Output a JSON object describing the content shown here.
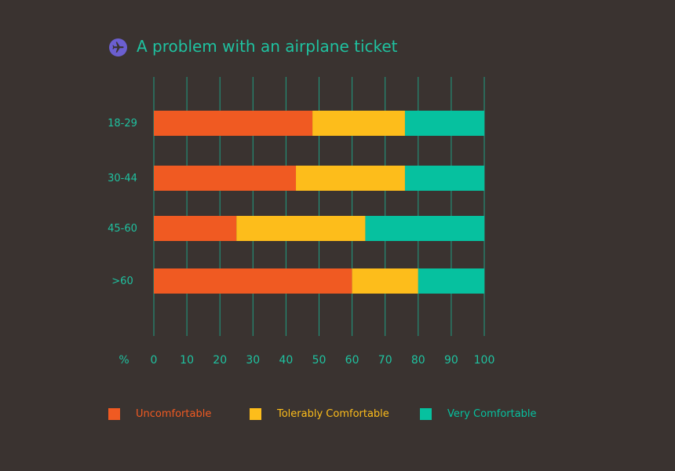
{
  "colors": {
    "background": "#3a3330",
    "text": "#1fc2a0",
    "grid": "#1f9d82",
    "icon_bg": "#6b5fd0"
  },
  "icon": "airplane-icon",
  "chart_data": {
    "type": "bar",
    "orientation": "horizontal",
    "stacked": true,
    "title": "A problem with an airplane ticket",
    "xlabel": "%",
    "ylabel": "",
    "xlim": [
      0,
      100
    ],
    "xticks": [
      0,
      10,
      20,
      30,
      40,
      50,
      60,
      70,
      80,
      90,
      100
    ],
    "grid": true,
    "legend": "bottom",
    "categories": [
      "18-29",
      "30-44",
      "45-60",
      ">60"
    ],
    "series": [
      {
        "name": "Uncomfortable",
        "color": "#f05a22",
        "values": [
          48,
          43,
          25,
          60
        ]
      },
      {
        "name": "Tolerably Comfortable",
        "color": "#fdbd1b",
        "values": [
          28,
          33,
          39,
          20
        ]
      },
      {
        "name": "Very Comfortable",
        "color": "#06c19f",
        "values": [
          24,
          24,
          36,
          20
        ]
      }
    ]
  }
}
